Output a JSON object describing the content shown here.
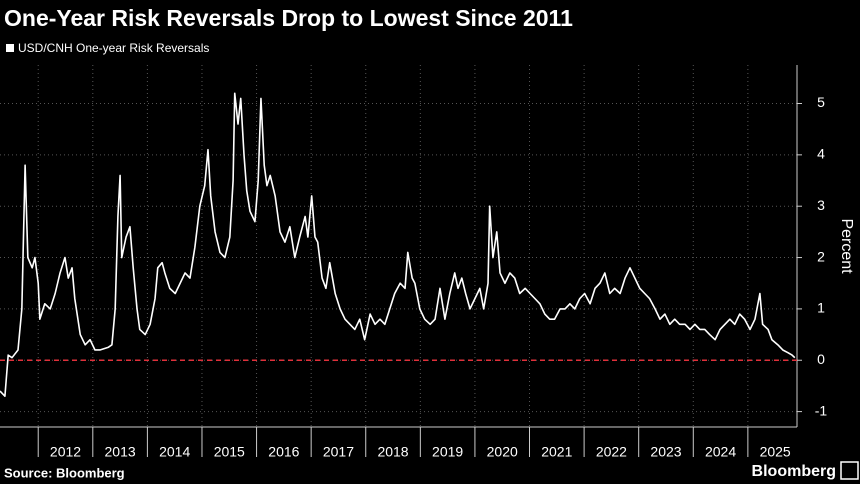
{
  "chart_data": {
    "type": "line",
    "title": "One-Year Risk Reversals Drop to Lowest Since 2011",
    "y_label": "Percent",
    "source": "Source: Bloomberg",
    "brand": "Bloomberg",
    "series": [
      {
        "name": "USD/CNH One-year Risk Reversals",
        "color": "#ffffff",
        "x": [
          2011.3,
          2011.39,
          2011.45,
          2011.52,
          2011.63,
          2011.7,
          2011.76,
          2011.81,
          2011.89,
          2011.94,
          2012.0,
          2012.03,
          2012.12,
          2012.22,
          2012.31,
          2012.4,
          2012.49,
          2012.55,
          2012.62,
          2012.67,
          2012.77,
          2012.86,
          2012.95,
          2013.04,
          2013.13,
          2013.28,
          2013.35,
          2013.41,
          2013.46,
          2013.5,
          2013.53,
          2013.61,
          2013.68,
          2013.74,
          2013.81,
          2013.86,
          2013.96,
          2014.05,
          2014.14,
          2014.19,
          2014.27,
          2014.32,
          2014.41,
          2014.51,
          2014.6,
          2014.69,
          2014.78,
          2014.87,
          2014.96,
          2015.05,
          2015.11,
          2015.16,
          2015.24,
          2015.33,
          2015.42,
          2015.51,
          2015.57,
          2015.6,
          2015.66,
          2015.71,
          2015.77,
          2015.82,
          2015.88,
          2015.97,
          2016.03,
          2016.08,
          2016.14,
          2016.19,
          2016.25,
          2016.34,
          2016.43,
          2016.52,
          2016.61,
          2016.7,
          2016.79,
          2016.89,
          2016.94,
          2017.01,
          2017.07,
          2017.12,
          2017.2,
          2017.27,
          2017.34,
          2017.44,
          2017.53,
          2017.62,
          2017.71,
          2017.8,
          2017.89,
          2017.98,
          2018.08,
          2018.17,
          2018.26,
          2018.35,
          2018.44,
          2018.53,
          2018.63,
          2018.72,
          2018.77,
          2018.85,
          2018.9,
          2018.99,
          2019.08,
          2019.18,
          2019.27,
          2019.36,
          2019.45,
          2019.54,
          2019.63,
          2019.69,
          2019.76,
          2019.83,
          2019.91,
          2020.0,
          2020.09,
          2020.16,
          2020.24,
          2020.27,
          2020.33,
          2020.4,
          2020.46,
          2020.55,
          2020.64,
          2020.73,
          2020.82,
          2020.92,
          2021.01,
          2021.1,
          2021.19,
          2021.28,
          2021.37,
          2021.46,
          2021.56,
          2021.65,
          2021.74,
          2021.83,
          2021.92,
          2022.01,
          2022.11,
          2022.2,
          2022.29,
          2022.38,
          2022.47,
          2022.56,
          2022.66,
          2022.75,
          2022.84,
          2022.93,
          2023.02,
          2023.11,
          2023.2,
          2023.3,
          2023.39,
          2023.48,
          2023.57,
          2023.66,
          2023.75,
          2023.85,
          2023.94,
          2024.03,
          2024.12,
          2024.21,
          2024.3,
          2024.4,
          2024.49,
          2024.58,
          2024.67,
          2024.76,
          2024.85,
          2024.94,
          2025.04,
          2025.13,
          2025.22,
          2025.27,
          2025.37,
          2025.44,
          2025.55,
          2025.64,
          2025.73,
          2025.81,
          2025.86
        ],
        "values": [
          -0.6,
          -0.7,
          0.1,
          0.05,
          0.2,
          1.0,
          3.8,
          2.0,
          1.8,
          2.0,
          1.5,
          0.8,
          1.1,
          1.0,
          1.3,
          1.7,
          2.0,
          1.6,
          1.8,
          1.2,
          0.5,
          0.3,
          0.4,
          0.2,
          0.2,
          0.25,
          0.3,
          1.0,
          2.8,
          3.6,
          2.0,
          2.4,
          2.6,
          1.8,
          1.0,
          0.6,
          0.5,
          0.7,
          1.2,
          1.8,
          1.9,
          1.7,
          1.4,
          1.3,
          1.5,
          1.7,
          1.6,
          2.2,
          3.0,
          3.4,
          4.1,
          3.2,
          2.5,
          2.1,
          2.0,
          2.4,
          3.5,
          5.2,
          4.6,
          5.1,
          4.0,
          3.3,
          2.9,
          2.7,
          3.5,
          5.1,
          3.8,
          3.4,
          3.6,
          3.2,
          2.5,
          2.3,
          2.6,
          2.0,
          2.4,
          2.8,
          2.4,
          3.2,
          2.4,
          2.3,
          1.6,
          1.4,
          1.9,
          1.3,
          1.0,
          0.8,
          0.7,
          0.6,
          0.8,
          0.4,
          0.9,
          0.7,
          0.8,
          0.7,
          1.0,
          1.3,
          1.5,
          1.4,
          2.1,
          1.6,
          1.5,
          1.0,
          0.8,
          0.7,
          0.8,
          1.4,
          0.8,
          1.3,
          1.7,
          1.4,
          1.6,
          1.3,
          1.0,
          1.2,
          1.4,
          1.0,
          1.5,
          3.0,
          2.0,
          2.5,
          1.7,
          1.5,
          1.7,
          1.6,
          1.3,
          1.4,
          1.3,
          1.2,
          1.1,
          0.9,
          0.8,
          0.8,
          1.0,
          1.0,
          1.1,
          1.0,
          1.2,
          1.3,
          1.1,
          1.4,
          1.5,
          1.7,
          1.3,
          1.4,
          1.3,
          1.6,
          1.8,
          1.6,
          1.4,
          1.3,
          1.2,
          1.0,
          0.8,
          0.9,
          0.7,
          0.8,
          0.7,
          0.7,
          0.6,
          0.7,
          0.6,
          0.6,
          0.5,
          0.4,
          0.6,
          0.7,
          0.8,
          0.7,
          0.9,
          0.8,
          0.6,
          0.8,
          1.3,
          0.7,
          0.6,
          0.4,
          0.3,
          0.2,
          0.15,
          0.1,
          0.05
        ]
      }
    ],
    "reference_line": {
      "value": 0,
      "color": "#e0303a"
    },
    "xlim": [
      2011.3,
      2025.9
    ],
    "xticks": [
      2012,
      2013,
      2014,
      2015,
      2016,
      2017,
      2018,
      2019,
      2020,
      2021,
      2022,
      2023,
      2024,
      2025
    ],
    "ylim": [
      -1.3,
      5.75
    ],
    "yticks": [
      -1,
      0,
      1,
      2,
      3,
      4,
      5
    ],
    "grid": true
  }
}
